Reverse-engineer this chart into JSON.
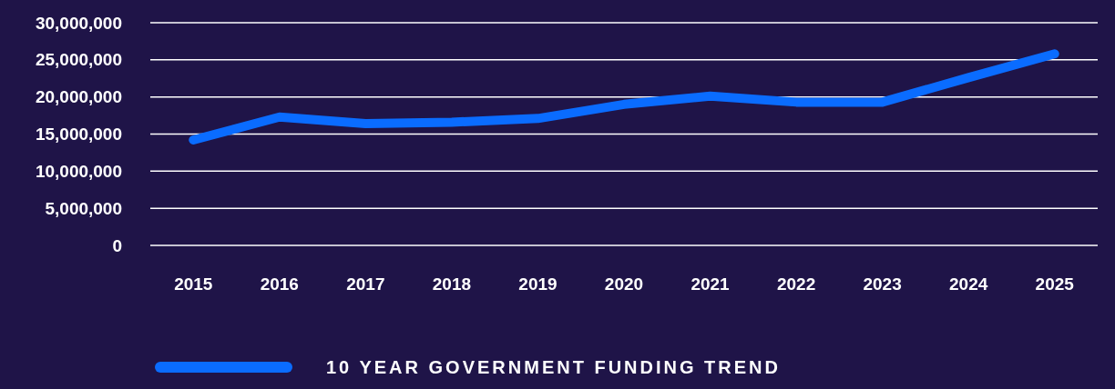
{
  "chart_data": {
    "type": "line",
    "categories": [
      "2015",
      "2016",
      "2017",
      "2018",
      "2019",
      "2020",
      "2021",
      "2022",
      "2023",
      "2024",
      "2025"
    ],
    "series": [
      {
        "name": "10 YEAR GOVERNMENT FUNDING TREND",
        "color": "#0a6cff",
        "values": [
          14200000,
          17300000,
          16400000,
          16600000,
          17100000,
          19000000,
          20100000,
          19300000,
          19300000,
          22600000,
          25800000
        ]
      }
    ],
    "ylim": [
      0,
      30000000
    ],
    "yticks": [
      {
        "value": 0,
        "label": "0"
      },
      {
        "value": 5000000,
        "label": "5,000,000"
      },
      {
        "value": 10000000,
        "label": "10,000,000"
      },
      {
        "value": 15000000,
        "label": "15,000,000"
      },
      {
        "value": 20000000,
        "label": "20,000,000"
      },
      {
        "value": 25000000,
        "label": "25,000,000"
      },
      {
        "value": 30000000,
        "label": "30,000,000"
      }
    ],
    "grid": "y",
    "legend": "bottom",
    "line_style": "solid",
    "marker": "none"
  }
}
